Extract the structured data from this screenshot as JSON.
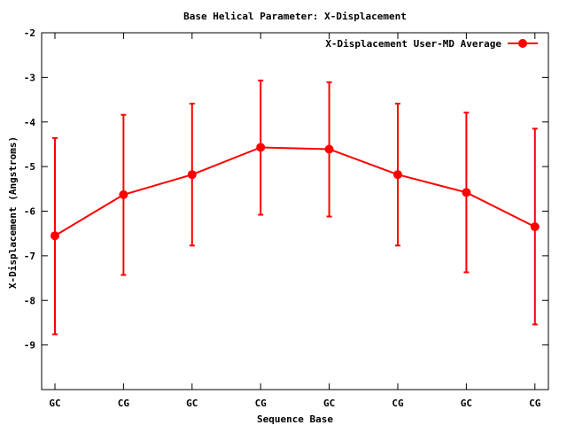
{
  "chart_data": {
    "type": "line",
    "title": "Base  Helical Parameter: X-Displacement",
    "xlabel": "Sequence Base",
    "ylabel": "X-Displacement (Angstroms)",
    "ylim": [
      -10,
      -2
    ],
    "yticks": [
      "-2",
      "-3",
      "-4",
      "-5",
      "-6",
      "-7",
      "-8",
      "-9"
    ],
    "categories": [
      "GC",
      "CG",
      "GC",
      "CG",
      "GC",
      "CG",
      "GC",
      "CG"
    ],
    "series": [
      {
        "name": "X-Displacement User-MD Average",
        "color": "#ff0000",
        "values": [
          -6.55,
          -5.63,
          -5.18,
          -4.57,
          -4.61,
          -5.18,
          -5.58,
          -6.35
        ],
        "error_low": [
          -8.76,
          -7.43,
          -6.77,
          -6.08,
          -6.12,
          -6.77,
          -7.37,
          -8.54
        ],
        "error_high": [
          -4.36,
          -3.84,
          -3.59,
          -3.07,
          -3.11,
          -3.59,
          -3.79,
          -4.15
        ]
      }
    ],
    "grid": false,
    "legend_position": "top-right"
  }
}
